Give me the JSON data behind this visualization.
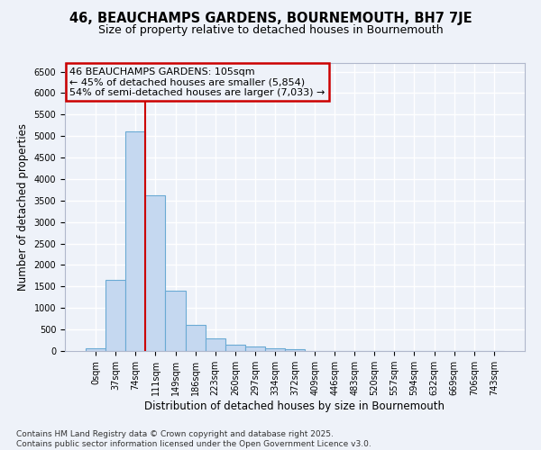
{
  "title": "46, BEAUCHAMPS GARDENS, BOURNEMOUTH, BH7 7JE",
  "subtitle": "Size of property relative to detached houses in Bournemouth",
  "xlabel": "Distribution of detached houses by size in Bournemouth",
  "ylabel": "Number of detached properties",
  "footer_line1": "Contains HM Land Registry data © Crown copyright and database right 2025.",
  "footer_line2": "Contains public sector information licensed under the Open Government Licence v3.0.",
  "bin_labels": [
    "0sqm",
    "37sqm",
    "74sqm",
    "111sqm",
    "149sqm",
    "186sqm",
    "223sqm",
    "260sqm",
    "297sqm",
    "334sqm",
    "372sqm",
    "409sqm",
    "446sqm",
    "483sqm",
    "520sqm",
    "557sqm",
    "594sqm",
    "632sqm",
    "669sqm",
    "706sqm",
    "743sqm"
  ],
  "bar_values": [
    60,
    1650,
    5100,
    3630,
    1400,
    610,
    300,
    145,
    110,
    70,
    40,
    0,
    0,
    0,
    0,
    0,
    0,
    0,
    0,
    0,
    0
  ],
  "bar_color": "#c5d8f0",
  "bar_edge_color": "#6aaad4",
  "vline_x_index": 3,
  "vline_color": "#cc0000",
  "annotation_text_line1": "46 BEAUCHAMPS GARDENS: 105sqm",
  "annotation_text_line2": "← 45% of detached houses are smaller (5,854)",
  "annotation_text_line3": "54% of semi-detached houses are larger (7,033) →",
  "annotation_box_color": "#cc0000",
  "ylim": [
    0,
    6700
  ],
  "yticks": [
    0,
    500,
    1000,
    1500,
    2000,
    2500,
    3000,
    3500,
    4000,
    4500,
    5000,
    5500,
    6000,
    6500
  ],
  "bg_color": "#eef2f9",
  "grid_color": "#ffffff",
  "title_fontsize": 10.5,
  "subtitle_fontsize": 9,
  "axis_label_fontsize": 8.5,
  "tick_fontsize": 7,
  "footer_fontsize": 6.5,
  "annotation_fontsize": 8
}
